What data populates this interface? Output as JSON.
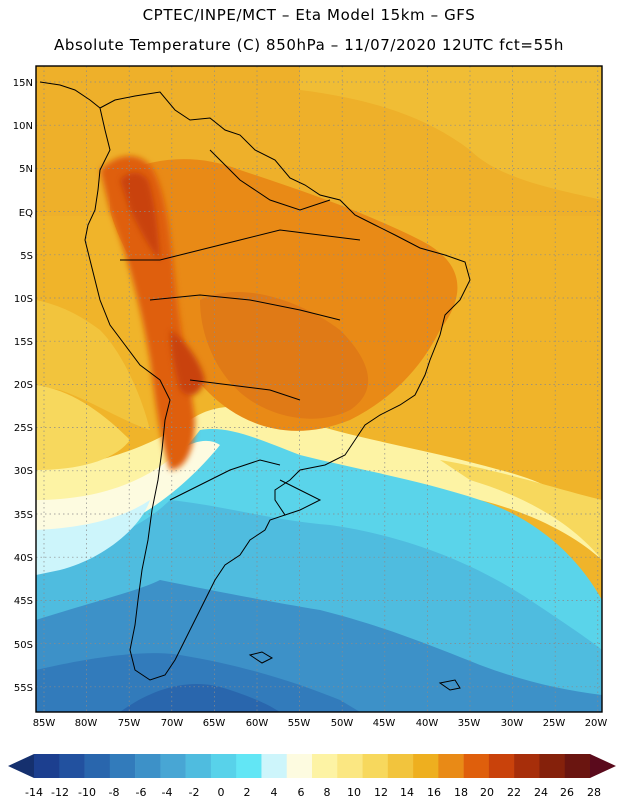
{
  "header": {
    "line1": "CPTEC/INPE/MCT –  Eta Model 15km – GFS",
    "line2": "Absolute Temperature (C) 850hPa – 11/07/2020 12UTC fct=55h"
  },
  "map": {
    "lat_labels": [
      "15N",
      "10N",
      "5N",
      "EQ",
      "5S",
      "10S",
      "15S",
      "20S",
      "25S",
      "30S",
      "35S",
      "40S",
      "45S",
      "50S",
      "55S"
    ],
    "lon_labels": [
      "85W",
      "80W",
      "75W",
      "70W",
      "65W",
      "60W",
      "55W",
      "50W",
      "45W",
      "40W",
      "35W",
      "30W",
      "25W",
      "20W"
    ]
  },
  "legend": {
    "values": [
      "-14",
      "-12",
      "-10",
      "-8",
      "-6",
      "-4",
      "-2",
      "0",
      "2",
      "4",
      "6",
      "8",
      "10",
      "12",
      "14",
      "16",
      "18",
      "20",
      "22",
      "24",
      "26",
      "28"
    ],
    "colors": [
      "#1c3f8f",
      "#22519f",
      "#2966ad",
      "#327bbb",
      "#3d91c8",
      "#48a6d4",
      "#4fbcdf",
      "#58d2ea",
      "#62e6f5",
      "#cdf5fb",
      "#fdfbe0",
      "#fdf3a4",
      "#fbe782",
      "#f7d85d",
      "#f2c43d",
      "#eeaf1f",
      "#e98a16",
      "#df5f0c",
      "#c9420b",
      "#a72e0a",
      "#85210b",
      "#6a1510"
    ],
    "left_arrow_color": "#15306e",
    "right_arrow_color": "#5a0a1c"
  }
}
